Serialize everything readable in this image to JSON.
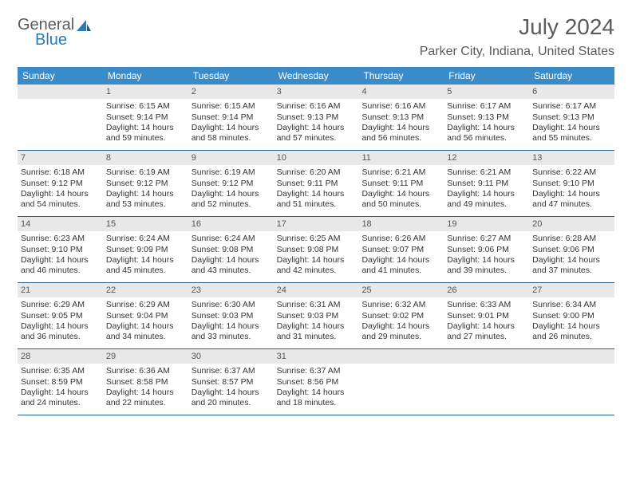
{
  "brand": {
    "word1": "General",
    "word2": "Blue"
  },
  "title": "July 2024",
  "location": "Parker City, Indiana, United States",
  "colors": {
    "header_bg": "#3b8bc8",
    "header_text": "#ffffff",
    "row_border": "#2a5d8a",
    "daynum_bg": "#e8e8e8",
    "text": "#333333",
    "title_text": "#5b5b5b",
    "brand_blue": "#2a7ab9"
  },
  "typography": {
    "title_fontsize": 28,
    "location_fontsize": 16,
    "dow_fontsize": 12,
    "cell_fontsize": 10.5
  },
  "dow": [
    "Sunday",
    "Monday",
    "Tuesday",
    "Wednesday",
    "Thursday",
    "Friday",
    "Saturday"
  ],
  "weeks": [
    [
      {
        "num": "",
        "text": ""
      },
      {
        "num": "1",
        "text": "Sunrise: 6:15 AM\nSunset: 9:14 PM\nDaylight: 14 hours and 59 minutes."
      },
      {
        "num": "2",
        "text": "Sunrise: 6:15 AM\nSunset: 9:14 PM\nDaylight: 14 hours and 58 minutes."
      },
      {
        "num": "3",
        "text": "Sunrise: 6:16 AM\nSunset: 9:13 PM\nDaylight: 14 hours and 57 minutes."
      },
      {
        "num": "4",
        "text": "Sunrise: 6:16 AM\nSunset: 9:13 PM\nDaylight: 14 hours and 56 minutes."
      },
      {
        "num": "5",
        "text": "Sunrise: 6:17 AM\nSunset: 9:13 PM\nDaylight: 14 hours and 56 minutes."
      },
      {
        "num": "6",
        "text": "Sunrise: 6:17 AM\nSunset: 9:13 PM\nDaylight: 14 hours and 55 minutes."
      }
    ],
    [
      {
        "num": "7",
        "text": "Sunrise: 6:18 AM\nSunset: 9:12 PM\nDaylight: 14 hours and 54 minutes."
      },
      {
        "num": "8",
        "text": "Sunrise: 6:19 AM\nSunset: 9:12 PM\nDaylight: 14 hours and 53 minutes."
      },
      {
        "num": "9",
        "text": "Sunrise: 6:19 AM\nSunset: 9:12 PM\nDaylight: 14 hours and 52 minutes."
      },
      {
        "num": "10",
        "text": "Sunrise: 6:20 AM\nSunset: 9:11 PM\nDaylight: 14 hours and 51 minutes."
      },
      {
        "num": "11",
        "text": "Sunrise: 6:21 AM\nSunset: 9:11 PM\nDaylight: 14 hours and 50 minutes."
      },
      {
        "num": "12",
        "text": "Sunrise: 6:21 AM\nSunset: 9:11 PM\nDaylight: 14 hours and 49 minutes."
      },
      {
        "num": "13",
        "text": "Sunrise: 6:22 AM\nSunset: 9:10 PM\nDaylight: 14 hours and 47 minutes."
      }
    ],
    [
      {
        "num": "14",
        "text": "Sunrise: 6:23 AM\nSunset: 9:10 PM\nDaylight: 14 hours and 46 minutes."
      },
      {
        "num": "15",
        "text": "Sunrise: 6:24 AM\nSunset: 9:09 PM\nDaylight: 14 hours and 45 minutes."
      },
      {
        "num": "16",
        "text": "Sunrise: 6:24 AM\nSunset: 9:08 PM\nDaylight: 14 hours and 43 minutes."
      },
      {
        "num": "17",
        "text": "Sunrise: 6:25 AM\nSunset: 9:08 PM\nDaylight: 14 hours and 42 minutes."
      },
      {
        "num": "18",
        "text": "Sunrise: 6:26 AM\nSunset: 9:07 PM\nDaylight: 14 hours and 41 minutes."
      },
      {
        "num": "19",
        "text": "Sunrise: 6:27 AM\nSunset: 9:06 PM\nDaylight: 14 hours and 39 minutes."
      },
      {
        "num": "20",
        "text": "Sunrise: 6:28 AM\nSunset: 9:06 PM\nDaylight: 14 hours and 37 minutes."
      }
    ],
    [
      {
        "num": "21",
        "text": "Sunrise: 6:29 AM\nSunset: 9:05 PM\nDaylight: 14 hours and 36 minutes."
      },
      {
        "num": "22",
        "text": "Sunrise: 6:29 AM\nSunset: 9:04 PM\nDaylight: 14 hours and 34 minutes."
      },
      {
        "num": "23",
        "text": "Sunrise: 6:30 AM\nSunset: 9:03 PM\nDaylight: 14 hours and 33 minutes."
      },
      {
        "num": "24",
        "text": "Sunrise: 6:31 AM\nSunset: 9:03 PM\nDaylight: 14 hours and 31 minutes."
      },
      {
        "num": "25",
        "text": "Sunrise: 6:32 AM\nSunset: 9:02 PM\nDaylight: 14 hours and 29 minutes."
      },
      {
        "num": "26",
        "text": "Sunrise: 6:33 AM\nSunset: 9:01 PM\nDaylight: 14 hours and 27 minutes."
      },
      {
        "num": "27",
        "text": "Sunrise: 6:34 AM\nSunset: 9:00 PM\nDaylight: 14 hours and 26 minutes."
      }
    ],
    [
      {
        "num": "28",
        "text": "Sunrise: 6:35 AM\nSunset: 8:59 PM\nDaylight: 14 hours and 24 minutes."
      },
      {
        "num": "29",
        "text": "Sunrise: 6:36 AM\nSunset: 8:58 PM\nDaylight: 14 hours and 22 minutes."
      },
      {
        "num": "30",
        "text": "Sunrise: 6:37 AM\nSunset: 8:57 PM\nDaylight: 14 hours and 20 minutes."
      },
      {
        "num": "31",
        "text": "Sunrise: 6:37 AM\nSunset: 8:56 PM\nDaylight: 14 hours and 18 minutes."
      },
      {
        "num": "",
        "text": ""
      },
      {
        "num": "",
        "text": ""
      },
      {
        "num": "",
        "text": ""
      }
    ]
  ]
}
